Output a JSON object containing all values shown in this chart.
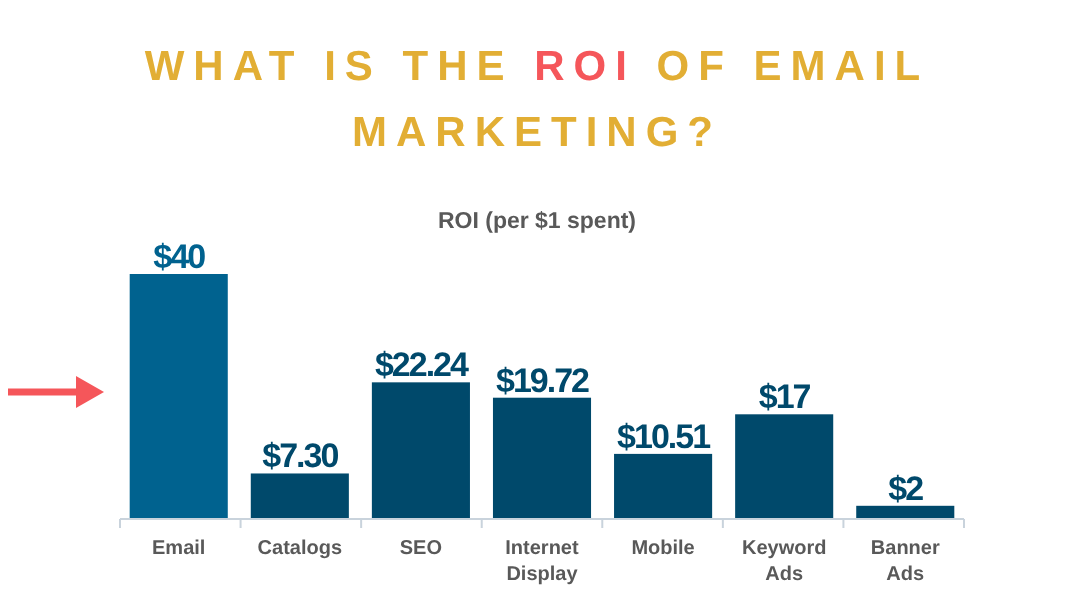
{
  "chart_data": {
    "type": "bar",
    "title": "WHAT IS THE ROI OF EMAIL MARKETING?",
    "subtitle": "ROI (per $1 spent)",
    "categories": [
      "Email",
      "Catalogs",
      "SEO",
      "Internet Display",
      "Mobile",
      "Keyword Ads",
      "Banner Ads"
    ],
    "values": [
      40,
      7.3,
      22.24,
      19.72,
      10.51,
      17,
      2
    ],
    "colors": [
      "#00628f",
      "#00496b",
      "#00496b",
      "#00496b",
      "#00496b",
      "#00496b",
      "#00496b"
    ],
    "value_labels": [
      "$40",
      "$7.30",
      "$22.24",
      "$19.72",
      "$10.51",
      "$17",
      "$2"
    ],
    "legend": false
  }
}
